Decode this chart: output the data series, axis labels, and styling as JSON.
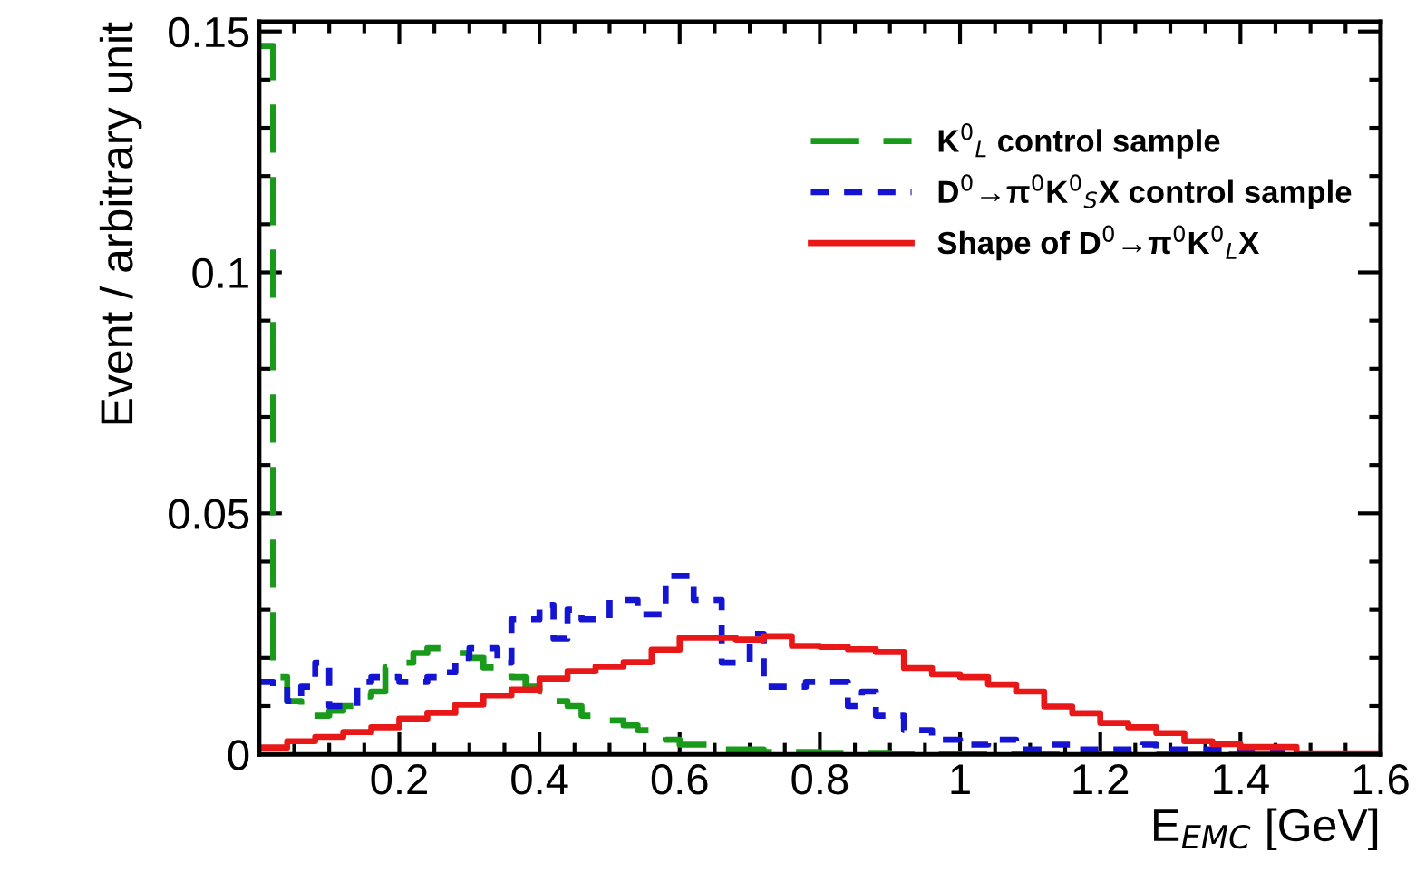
{
  "chart_data": {
    "type": "step",
    "xlabel": "E$_{EMC}$ [GeV]",
    "ylabel": "Event / arbitrary unit",
    "xlim": [
      0,
      1.6
    ],
    "ylim": [
      0,
      0.152
    ],
    "xticks": [
      {
        "value": 0,
        "label": null
      },
      0.2,
      0.4,
      0.6,
      0.8,
      1,
      1.2,
      1.4,
      1.6
    ],
    "yticks": [
      0,
      0.05,
      0.1,
      0.15
    ],
    "legend": "top right",
    "x": [
      0,
      0.02,
      0.04,
      0.06,
      0.08,
      0.1,
      0.12,
      0.14,
      0.16,
      0.18,
      0.2,
      0.22,
      0.24,
      0.26,
      0.28,
      0.3,
      0.32,
      0.34,
      0.36,
      0.38,
      0.4,
      0.42,
      0.44,
      0.46,
      0.48,
      0.5,
      0.52,
      0.54,
      0.56,
      0.58,
      0.6,
      0.62,
      0.64,
      0.66,
      0.68,
      0.7,
      0.72,
      0.74,
      0.76,
      0.78,
      0.8,
      0.82,
      0.84,
      0.86,
      0.88,
      0.9,
      0.92,
      0.94,
      0.96,
      0.98,
      1.0,
      1.02,
      1.04,
      1.06,
      1.08,
      1.1,
      1.12,
      1.14,
      1.16,
      1.18,
      1.2,
      1.22,
      1.24,
      1.26,
      1.28,
      1.3,
      1.32,
      1.34,
      1.36,
      1.38,
      1.4,
      1.42,
      1.44,
      1.46,
      1.48,
      1.5,
      1.52,
      1.54,
      1.56,
      1.58,
      1.6
    ],
    "series": [
      {
        "name": "K$^{0}$$_{L}$ control sample",
        "color": "#1a9a1a",
        "line_style": "dashed",
        "values": [
          0.147,
          0.016,
          0.011,
          0.008,
          0.008,
          0.009,
          0.01,
          0.012,
          0.013,
          0.018,
          0.019,
          0.021,
          0.022,
          0.022,
          0.021,
          0.02,
          0.018,
          0.017,
          0.016,
          0.014,
          0.013,
          0.011,
          0.01,
          0.008,
          0.008,
          0.007,
          0.006,
          0.005,
          0.004,
          0.003,
          0.002,
          0.002,
          0.001,
          0.001,
          0.001,
          0.001,
          0.0005,
          0.0005,
          0.0005,
          0.0005,
          0.0003,
          0.0003,
          0.0003,
          0.0003,
          0.0003,
          0,
          0,
          0,
          0,
          0,
          0,
          0,
          0,
          0,
          0,
          0,
          0,
          0,
          0,
          0,
          0,
          0,
          0,
          0,
          0,
          0,
          0,
          0,
          0,
          0,
          0,
          0,
          0,
          0,
          0,
          null,
          null,
          null,
          null,
          null,
          null
        ]
      },
      {
        "name": "D$^{0}$→π$^{0}$K$^{0}$$_{S}$X control sample",
        "color": "#1414d2",
        "line_style": "dotted",
        "values": [
          0.015,
          0.014,
          0.011,
          0.014,
          0.019,
          0.01,
          0.01,
          0.015,
          0.016,
          0.016,
          0.015,
          0.015,
          0.016,
          0.017,
          0.02,
          0.022,
          0.022,
          0.019,
          0.028,
          0.028,
          0.031,
          0.024,
          0.03,
          0.028,
          0.028,
          0.032,
          0.032,
          0.029,
          0.029,
          0.037,
          0.037,
          0.032,
          0.032,
          0.019,
          0.019,
          0.025,
          0.014,
          0.014,
          0.014,
          0.015,
          0.015,
          0.015,
          0.01,
          0.013,
          0.008,
          0.008,
          0.005,
          0.005,
          0.003,
          0.003,
          0.002,
          0.002,
          0.003,
          0.003,
          0.001,
          0.001,
          0.002,
          0.002,
          0.001,
          0.001,
          0.001,
          0.001,
          0.001,
          0.002,
          0.001,
          0.001,
          0.001,
          0.001,
          0.001,
          0.001,
          0.001,
          0.001,
          0.001,
          0,
          0,
          0,
          null,
          null,
          null,
          null,
          null
        ]
      },
      {
        "name": "Shape of D$^{0}$→π$^{0}$K$^{0}$$_{L}$X",
        "color": "#e81818",
        "line_style": "solid",
        "values": [
          0.0014,
          0.0014,
          0.0027,
          0.0027,
          0.0036,
          0.0036,
          0.0046,
          0.0046,
          0.0056,
          0.0056,
          0.0074,
          0.0074,
          0.0086,
          0.0086,
          0.0103,
          0.0103,
          0.0122,
          0.0122,
          0.0134,
          0.0134,
          0.0157,
          0.0157,
          0.0172,
          0.0172,
          0.0182,
          0.0182,
          0.0191,
          0.0191,
          0.0217,
          0.0217,
          0.0242,
          0.0242,
          0.0242,
          0.0242,
          0.0238,
          0.0238,
          0.0245,
          0.0245,
          0.0225,
          0.0225,
          0.0223,
          0.0223,
          0.0218,
          0.0218,
          0.0212,
          0.0212,
          0.0179,
          0.0179,
          0.0166,
          0.0166,
          0.016,
          0.016,
          0.0145,
          0.0145,
          0.013,
          0.013,
          0.0099,
          0.0099,
          0.0085,
          0.0085,
          0.0065,
          0.0065,
          0.0056,
          0.0056,
          0.0044,
          0.0044,
          0.0027,
          0.0027,
          0.0021,
          0.0021,
          0.0015,
          0.0015,
          0.0015,
          0.0015,
          0.0002,
          0.0002,
          0.0002,
          0.0002,
          0.0002,
          0.0002,
          0.0002
        ]
      }
    ]
  }
}
